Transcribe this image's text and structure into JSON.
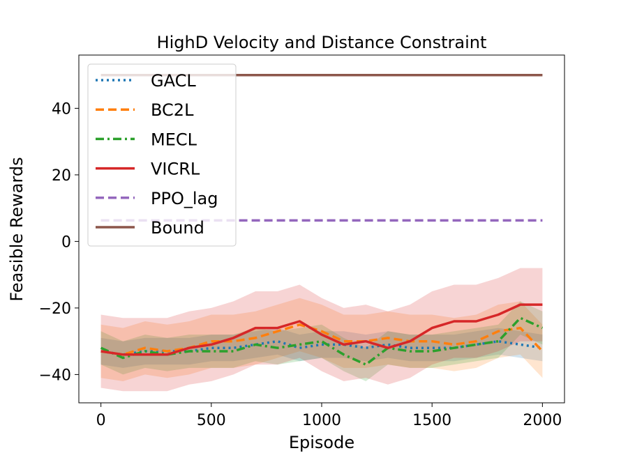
{
  "chart_data": {
    "type": "line",
    "title": "HighD Velocity and Distance Constraint",
    "xlabel": "Episode",
    "ylabel": "Feasible Rewards",
    "xlim": [
      -100,
      2100
    ],
    "ylim": [
      -48.5,
      56
    ],
    "xticks": [
      0,
      500,
      1000,
      1500,
      2000
    ],
    "yticks": [
      -40,
      -20,
      0,
      20,
      40
    ],
    "xtick_labels": [
      "0",
      "500",
      "1000",
      "1500",
      "2000"
    ],
    "ytick_labels": [
      "−40",
      "−20",
      "0",
      "20",
      "40"
    ],
    "legend_position": "upper-left",
    "x": [
      0,
      100,
      200,
      300,
      400,
      500,
      600,
      700,
      800,
      900,
      1000,
      1100,
      1200,
      1300,
      1400,
      1500,
      1600,
      1700,
      1800,
      1900,
      2000
    ],
    "series": [
      {
        "name": "GACL",
        "color": "#1f77b4",
        "dash": "dotted",
        "values": [
          -33,
          -34,
          -33,
          -33,
          -33,
          -32,
          -32,
          -31,
          -30,
          -32,
          -31,
          -31,
          -32,
          -31,
          -32,
          -32,
          -32,
          -31,
          -30,
          -31,
          -32
        ],
        "band": 4
      },
      {
        "name": "BC2L",
        "color": "#ff7f0e",
        "dash": "dashed",
        "values": [
          -33,
          -34,
          -32,
          -33,
          -32,
          -30,
          -30,
          -29,
          -27,
          -25,
          -27,
          -30,
          -30,
          -29,
          -30,
          -30,
          -31,
          -30,
          -27,
          -26,
          -33
        ],
        "band": 8
      },
      {
        "name": "MECL",
        "color": "#2ca02c",
        "dash": "dashdot",
        "values": [
          -32,
          -35,
          -33,
          -34,
          -33,
          -33,
          -33,
          -31,
          -32,
          -31,
          -30,
          -34,
          -37,
          -32,
          -33,
          -33,
          -32,
          -31,
          -30,
          -23,
          -26
        ],
        "band": 5
      },
      {
        "name": "VICRL",
        "color": "#d62728",
        "dash": "solid",
        "values": [
          -33,
          -34,
          -34,
          -34,
          -32,
          -31,
          -29,
          -26,
          -26,
          -24,
          -28,
          -31,
          -30,
          -32,
          -30,
          -26,
          -24,
          -24,
          -22,
          -19,
          -19
        ],
        "band": 11
      },
      {
        "name": "PPO_lag",
        "color": "#9467bd",
        "dash": "dashed",
        "values": [
          6.3,
          6.3,
          6.3,
          6.3,
          6.3,
          6.3,
          6.3,
          6.3,
          6.3,
          6.3,
          6.3,
          6.3,
          6.3,
          6.3,
          6.3,
          6.3,
          6.3,
          6.3,
          6.3,
          6.3,
          6.3
        ],
        "band": 0
      },
      {
        "name": "Bound",
        "color": "#8c564b",
        "dash": "solid",
        "values": [
          50,
          50,
          50,
          50,
          50,
          50,
          50,
          50,
          50,
          50,
          50,
          50,
          50,
          50,
          50,
          50,
          50,
          50,
          50,
          50,
          50
        ],
        "band": 0
      }
    ]
  }
}
